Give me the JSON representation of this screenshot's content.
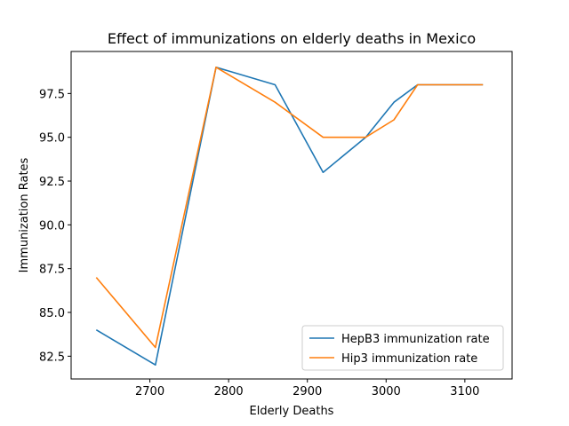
{
  "chart_data": {
    "type": "line",
    "title": "Effect of immunizations on elderly deaths in Mexico",
    "xlabel": "Elderly Deaths",
    "ylabel": "Immunization Rates",
    "xlim": [
      2600,
      3160
    ],
    "ylim": [
      81.2,
      99.9
    ],
    "xticks": [
      2700,
      2800,
      2900,
      3000,
      3100
    ],
    "yticks": [
      82.5,
      85.0,
      87.5,
      90.0,
      92.5,
      95.0,
      97.5
    ],
    "grid": false,
    "legend_position": "lower-right",
    "series": [
      {
        "name": "HepB3 immunization rate",
        "color": "#1f77b4",
        "x": [
          2632,
          2707,
          2784,
          2859,
          2920,
          2974,
          3010,
          3040,
          3123
        ],
        "y": [
          84,
          82,
          99,
          98,
          93,
          95,
          97,
          98,
          98
        ]
      },
      {
        "name": "Hip3 immunization rate",
        "color": "#ff7f0e",
        "x": [
          2632,
          2707,
          2784,
          2859,
          2920,
          2974,
          3010,
          3040,
          3123
        ],
        "y": [
          87,
          83,
          99,
          97,
          95,
          95,
          96,
          98,
          98
        ]
      }
    ]
  }
}
